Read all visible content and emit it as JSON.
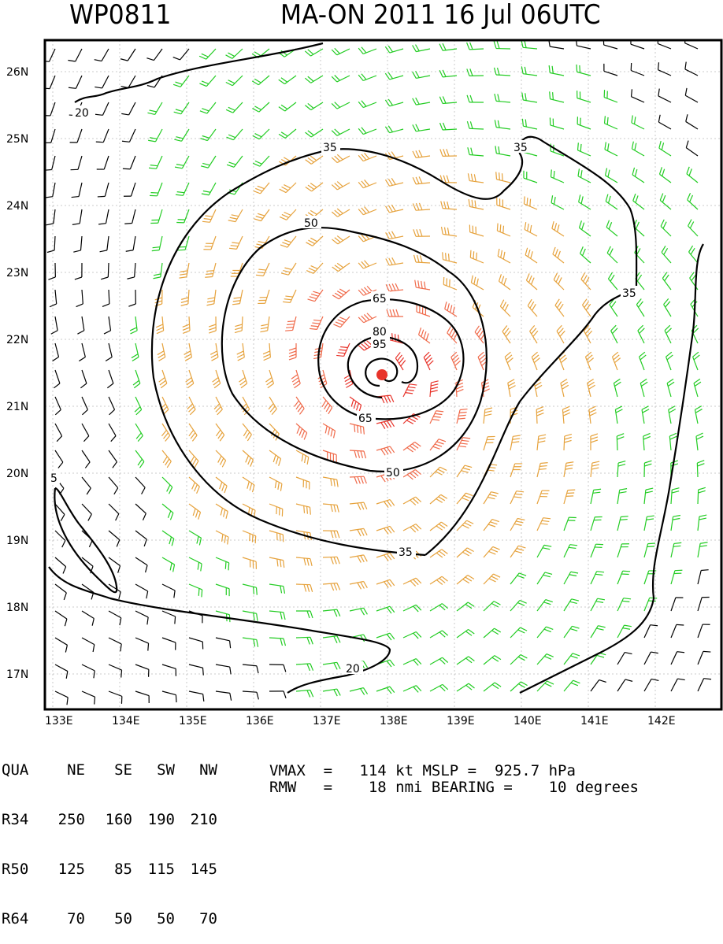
{
  "header": {
    "storm_id": "WP0811",
    "storm_info": "MA-ON 2011 16 Jul 06UTC"
  },
  "map": {
    "lat_labels": [
      "26N",
      "25N",
      "24N",
      "23N",
      "22N",
      "21N",
      "20N",
      "19N",
      "18N",
      "17N"
    ],
    "lon_labels": [
      "133E",
      "134E",
      "135E",
      "136E",
      "137E",
      "138E",
      "139E",
      "140E",
      "141E",
      "142E"
    ],
    "contour_labels": [
      "20",
      "35",
      "35",
      "50",
      "65",
      "80",
      "95",
      "65",
      "50",
      "35",
      "35",
      "5",
      "20"
    ],
    "center_color": "#e8332a",
    "wind_colors": {
      "calm": "#000000",
      "tropical_storm": "#22cc22",
      "storm": "#e6a23c",
      "typhoon": "#f06a4a",
      "core": "#e8332a"
    }
  },
  "table": {
    "header": [
      "QUA",
      "NE",
      "SE",
      "SW",
      "NW"
    ],
    "rows": [
      [
        "R34",
        "250",
        "160",
        "190",
        "210"
      ],
      [
        "R50",
        "125",
        "85",
        "115",
        "145"
      ],
      [
        "R64",
        "70",
        "50",
        "50",
        "70"
      ]
    ]
  },
  "stats": {
    "vmax_line": "VMAX  =   114 kt MSLP =  925.7 hPa",
    "rmw_line": "RMW   =    18 nmi BEARING =    10 degrees"
  }
}
